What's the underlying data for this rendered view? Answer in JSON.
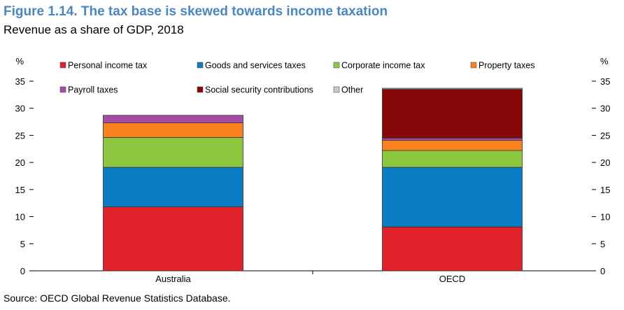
{
  "title": "Figure 1.14. The tax base is skewed towards income taxation",
  "subtitle": "Revenue as a share of GDP, 2018",
  "source": "Source: OECD Global Revenue Statistics Database.",
  "chart_data": {
    "type": "bar",
    "stacked": true,
    "categories": [
      "Australia",
      "OECD"
    ],
    "ylabel_left": "%",
    "ylabel_right": "%",
    "ylim": [
      0,
      35
    ],
    "yticks": [
      0,
      5,
      10,
      15,
      20,
      25,
      30,
      35
    ],
    "grid": false,
    "legend_position": "top",
    "series": [
      {
        "name": "Personal income tax",
        "color": "#e0232a",
        "values": [
          11.8,
          8.1
        ]
      },
      {
        "name": "Goods and services taxes",
        "color": "#0a7dc4",
        "values": [
          7.3,
          11.0
        ]
      },
      {
        "name": "Corporate income tax",
        "color": "#8dc63f",
        "values": [
          5.5,
          3.1
        ]
      },
      {
        "name": "Property taxes",
        "color": "#f7821e",
        "values": [
          2.7,
          1.9
        ]
      },
      {
        "name": "Payroll taxes",
        "color": "#a64ca6",
        "values": [
          1.4,
          0.4
        ]
      },
      {
        "name": "Social security contributions",
        "color": "#850707",
        "values": [
          0.0,
          9.0
        ]
      },
      {
        "name": "Other",
        "color": "#c8c8c8",
        "values": [
          0.0,
          0.2
        ]
      }
    ]
  }
}
